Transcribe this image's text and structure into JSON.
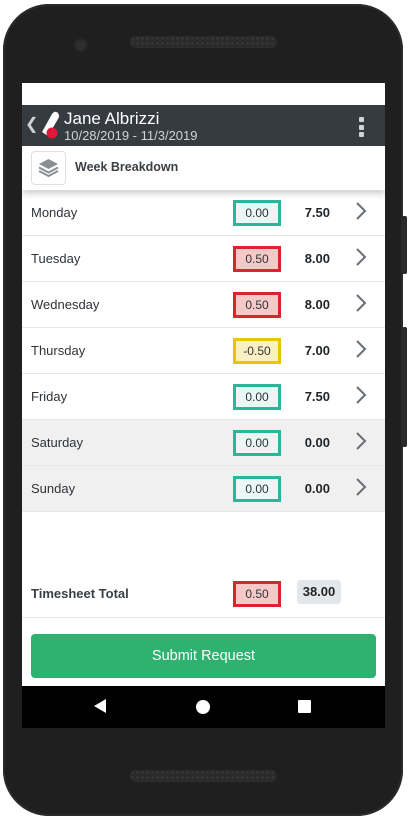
{
  "header": {
    "name": "Jane Albrizzi",
    "date_range": "10/28/2019 - 11/3/2019",
    "logo_colors": {
      "primary": "#ffffff",
      "accent": "#e0163b"
    }
  },
  "section": {
    "title": "Week Breakdown"
  },
  "days": [
    {
      "day": "Monday",
      "diff": "0.00",
      "status": "green",
      "hours": "7.50"
    },
    {
      "day": "Tuesday",
      "diff": "0.50",
      "status": "red",
      "hours": "8.00"
    },
    {
      "day": "Wednesday",
      "diff": "0.50",
      "status": "red",
      "hours": "8.00"
    },
    {
      "day": "Thursday",
      "diff": "-0.50",
      "status": "yellow",
      "hours": "7.00"
    },
    {
      "day": "Friday",
      "diff": "0.00",
      "status": "green",
      "hours": "7.50"
    },
    {
      "day": "Saturday",
      "diff": "0.00",
      "status": "green",
      "hours": "0.00"
    },
    {
      "day": "Sunday",
      "diff": "0.00",
      "status": "green",
      "hours": "0.00"
    }
  ],
  "total": {
    "label": "Timesheet Total",
    "diff": "0.50",
    "status": "red",
    "hours": "38.00"
  },
  "submit": {
    "label": "Submit Request"
  },
  "colors": {
    "appbar": "#353b40",
    "submit": "#2fb16f",
    "status_green": "#27b89a",
    "status_red": "#d9252b",
    "status_yellow": "#e9c400"
  },
  "icons": {
    "back": "chevron-left-icon",
    "menu": "more-vert-icon",
    "section": "layers-icon",
    "row_action": "chevron-right-icon",
    "nav": [
      "nav-back-icon",
      "nav-home-icon",
      "nav-recents-icon"
    ]
  }
}
